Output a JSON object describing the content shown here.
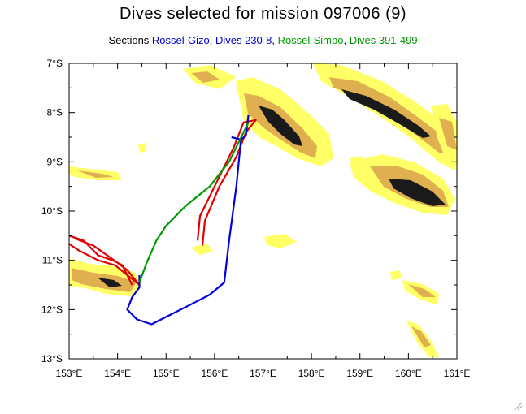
{
  "title": "Dives selected for mission 097006 (9)",
  "subtitle": {
    "prefix": "Sections ",
    "parts": [
      {
        "text": "Rossel-Gizo",
        "color": "#0000cc"
      },
      {
        "text": ", ",
        "color": "#000000"
      },
      {
        "text": "Dives 230-8",
        "color": "#0000cc"
      },
      {
        "text": ", ",
        "color": "#000000"
      },
      {
        "text": "Rossel-Simbo",
        "color": "#009900"
      },
      {
        "text": ", ",
        "color": "#000000"
      },
      {
        "text": "Dives 391-499",
        "color": "#009900"
      }
    ]
  },
  "chart_data": {
    "type": "map",
    "xlim": [
      153,
      161
    ],
    "ylim": [
      -13,
      -7
    ],
    "x_ticks": [
      "153°E",
      "154°E",
      "155°E",
      "156°E",
      "157°E",
      "158°E",
      "159°E",
      "160°E",
      "161°E"
    ],
    "y_ticks": [
      "7°S",
      "8°S",
      "9°S",
      "10°S",
      "11°S",
      "12°S",
      "13°S"
    ],
    "colors": {
      "land_light": "#ffff66",
      "land_mid": "#e0b050",
      "land_dark": "#1a1a1a",
      "track_red": "#e00000",
      "track_blue": "#0000dd",
      "track_green": "#009900"
    },
    "tracks": [
      {
        "color": "red",
        "points": [
          [
            154.3,
            -11.5
          ],
          [
            154.1,
            -11.1
          ],
          [
            153.9,
            -11.0
          ],
          [
            153.6,
            -10.9
          ],
          [
            153.3,
            -10.6
          ],
          [
            153.0,
            -10.5
          ],
          [
            152.9,
            -10.6
          ],
          [
            153.2,
            -10.8
          ],
          [
            153.6,
            -11.0
          ],
          [
            153.95,
            -11.1
          ],
          [
            154.2,
            -11.3
          ],
          [
            154.45,
            -11.5
          ],
          [
            154.2,
            -11.2
          ],
          [
            154.0,
            -11.05
          ],
          [
            153.5,
            -10.7
          ],
          [
            153.1,
            -10.55
          ]
        ]
      },
      {
        "color": "red",
        "points": [
          [
            155.75,
            -10.7
          ],
          [
            155.8,
            -10.2
          ],
          [
            156.1,
            -9.5
          ],
          [
            156.45,
            -8.9
          ],
          [
            156.65,
            -8.4
          ],
          [
            156.85,
            -8.15
          ],
          [
            156.6,
            -8.2
          ],
          [
            156.4,
            -8.7
          ],
          [
            156.0,
            -9.5
          ],
          [
            155.7,
            -10.1
          ],
          [
            155.65,
            -10.6
          ]
        ]
      },
      {
        "color": "blue",
        "points": [
          [
            156.55,
            -8.5
          ],
          [
            156.45,
            -9.5
          ],
          [
            156.3,
            -10.6
          ],
          [
            156.2,
            -11.45
          ],
          [
            155.9,
            -11.7
          ],
          [
            155.5,
            -11.9
          ],
          [
            155.0,
            -12.15
          ],
          [
            154.7,
            -12.3
          ],
          [
            154.4,
            -12.2
          ],
          [
            154.2,
            -12.0
          ],
          [
            154.3,
            -11.75
          ],
          [
            154.45,
            -11.55
          ],
          [
            154.45,
            -11.3
          ]
        ]
      },
      {
        "color": "blue",
        "points": [
          [
            156.35,
            -8.5
          ],
          [
            156.55,
            -8.55
          ],
          [
            156.65,
            -8.45
          ],
          [
            156.7,
            -8.05
          ]
        ]
      },
      {
        "color": "green",
        "points": [
          [
            154.45,
            -11.45
          ],
          [
            154.6,
            -11.05
          ],
          [
            154.8,
            -10.6
          ],
          [
            155.0,
            -10.3
          ],
          [
            155.4,
            -9.9
          ],
          [
            155.9,
            -9.5
          ],
          [
            156.3,
            -9.0
          ],
          [
            156.7,
            -8.2
          ]
        ]
      }
    ]
  }
}
